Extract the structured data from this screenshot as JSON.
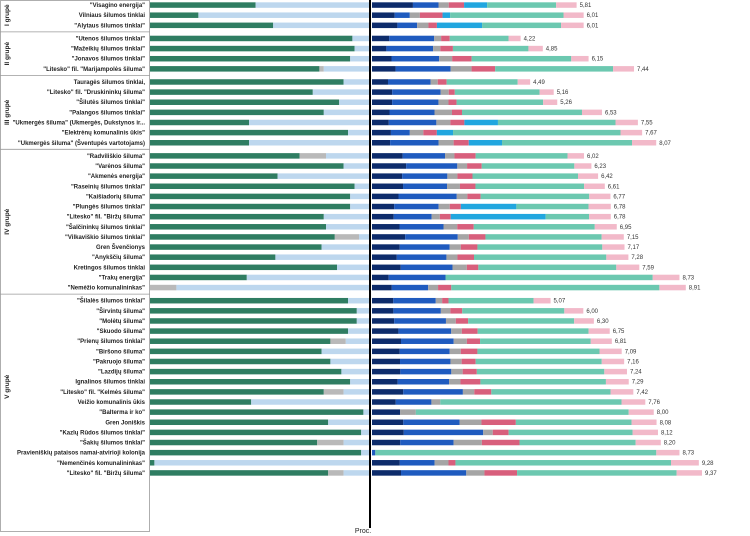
{
  "chart_data": {
    "type": "bar",
    "xlabel": "Proc.",
    "colors": {
      "left": [
        "#2f7d62",
        "#b9b9b9",
        "#bdd7ee"
      ],
      "right": [
        "#0d2c6b",
        "#1f5bbf",
        "#a5a5a5",
        "#d85f7c",
        "#21a6df",
        "#6cc8b0",
        "#f2b9c9"
      ]
    },
    "groups": [
      {
        "name": "I grupė",
        "rows": [
          {
            "label": "\"Visagino energija\"",
            "value": "5,81",
            "left": [
              0.48,
              0.0,
              0.52
            ],
            "right": [
              0,
              0.16,
              0.1,
              0.04,
              0.06,
              0.09,
              0.27,
              0.08
            ]
          },
          {
            "label": "Vilniaus šilumos tinklai",
            "value": "6,01",
            "left": [
              0.22,
              0.0,
              0.78
            ],
            "right": [
              0,
              0.09,
              0.06,
              0.04,
              0.09,
              0.03,
              0.45,
              0.08
            ]
          },
          {
            "label": "\"Alytaus šilumos tinklai\"",
            "value": "6,01",
            "left": [
              0.56,
              0.0,
              0.44
            ],
            "right": [
              0,
              0.09,
              0.07,
              0.04,
              0.03,
              0.16,
              0.28,
              0.08
            ]
          }
        ]
      },
      {
        "name": "II grupė",
        "rows": [
          {
            "label": "\"Utenos šilumos tinklai\"",
            "value": "4,22",
            "left": [
              0.92,
              0.0,
              0.08
            ],
            "right": [
              0,
              0.1,
              0.26,
              0.04,
              0.05,
              0.0,
              0.34,
              0.07
            ]
          },
          {
            "label": "\"Mažeikių šilumos tinklai\"",
            "value": "4,85",
            "left": [
              0.93,
              0.0,
              0.07
            ],
            "right": [
              0,
              0.08,
              0.26,
              0.04,
              0.07,
              0.0,
              0.42,
              0.08
            ]
          },
          {
            "label": "\"Jonavos šilumos tinklai\"",
            "value": "6,15",
            "left": [
              0.91,
              0.0,
              0.09
            ],
            "right": [
              0,
              0.09,
              0.22,
              0.06,
              0.09,
              0.0,
              0.46,
              0.08
            ]
          },
          {
            "label": "\"Litesko\" fil. \"Marijampolės šiluma\"",
            "value": "7,44",
            "left": [
              0.77,
              0.02,
              0.21
            ],
            "right": [
              0,
              0.09,
              0.21,
              0.08,
              0.09,
              0.0,
              0.45,
              0.08
            ]
          }
        ]
      },
      {
        "name": "III grupė",
        "rows": [
          {
            "label": "Tauragės šilumos tinklai,",
            "value": "4,49",
            "left": [
              0.88,
              0.0,
              0.12
            ],
            "right": [
              0,
              0.09,
              0.24,
              0.04,
              0.05,
              0.0,
              0.4,
              0.07
            ]
          },
          {
            "label": "\"Litesko\" fil. \"Druskininkų šiluma\"",
            "value": "5,16",
            "left": [
              0.74,
              0.0,
              0.26
            ],
            "right": [
              0,
              0.1,
              0.24,
              0.04,
              0.03,
              0.0,
              0.42,
              0.07
            ]
          },
          {
            "label": "\"Šilutės šilumos tinklai\"",
            "value": "5,26",
            "left": [
              0.86,
              0.0,
              0.14
            ],
            "right": [
              0,
              0.1,
              0.23,
              0.05,
              0.04,
              0.0,
              0.43,
              0.07
            ]
          },
          {
            "label": "\"Palangos šilumos tinklai\"",
            "value": "6,53",
            "left": [
              0.79,
              0.0,
              0.21
            ],
            "right": [
              0,
              0.07,
              0.18,
              0.07,
              0.04,
              0.0,
              0.48,
              0.08
            ]
          },
          {
            "label": "\"Ukmergės šiluma\" (Ukmergės, Dukstynos ir...",
            "value": "7,55",
            "left": [
              0.45,
              0.0,
              0.55
            ],
            "right": [
              0,
              0.06,
              0.17,
              0.05,
              0.05,
              0.12,
              0.42,
              0.08
            ]
          },
          {
            "label": "\"Elektrėnų komunalinis ūkis\"",
            "value": "7,67",
            "left": [
              0.9,
              0.0,
              0.1
            ],
            "right": [
              0,
              0.07,
              0.07,
              0.05,
              0.05,
              0.06,
              0.62,
              0.08
            ]
          },
          {
            "label": "\"Ukmergės šiluma\" (Šventupės vartotojams)",
            "value": "8,07",
            "left": [
              0.45,
              0.0,
              0.55
            ],
            "right": [
              0,
              0.06,
              0.16,
              0.05,
              0.05,
              0.11,
              0.43,
              0.08
            ]
          }
        ]
      },
      {
        "name": "IV grupė",
        "rows": [
          {
            "label": "\"Radviliškio šiluma\"",
            "value": "6,02",
            "left": [
              0.68,
              0.12,
              0.2
            ],
            "right": [
              0,
              0.13,
              0.18,
              0.04,
              0.09,
              0.0,
              0.39,
              0.07
            ]
          },
          {
            "label": "\"Varėnos šiluma\"",
            "value": "6,23",
            "left": [
              0.88,
              0.0,
              0.12
            ],
            "right": [
              0,
              0.14,
              0.21,
              0.04,
              0.06,
              0.0,
              0.38,
              0.07
            ]
          },
          {
            "label": "\"Akmenės energija\"",
            "value": "6,42",
            "left": [
              0.58,
              0.0,
              0.42
            ],
            "right": [
              0,
              0.12,
              0.18,
              0.04,
              0.06,
              0.0,
              0.42,
              0.08
            ]
          },
          {
            "label": "\"Raseinių šilumos tinklai\"",
            "value": "6,61",
            "left": [
              0.93,
              0.0,
              0.07
            ],
            "right": [
              0,
              0.12,
              0.17,
              0.05,
              0.06,
              0.0,
              0.42,
              0.08
            ]
          },
          {
            "label": "\"Kaišiadorių šiluma\"",
            "value": "6,77",
            "left": [
              0.91,
              0.0,
              0.09
            ],
            "right": [
              0,
              0.1,
              0.22,
              0.04,
              0.05,
              0.0,
              0.41,
              0.08
            ]
          },
          {
            "label": "\"Plungės šilumos tinklai\"",
            "value": "6,78",
            "left": [
              0.91,
              0.0,
              0.09
            ],
            "right": [
              0,
              0.08,
              0.16,
              0.04,
              0.04,
              0.2,
              0.26,
              0.08
            ]
          },
          {
            "label": "\"Litesko\" fil. \"Biržų šiluma\"",
            "value": "6,78",
            "left": [
              0.79,
              0.0,
              0.21
            ],
            "right": [
              0,
              0.08,
              0.14,
              0.03,
              0.04,
              0.35,
              0.16,
              0.08
            ]
          },
          {
            "label": "\"Šalčininkų šilumos tinklai\"",
            "value": "6,95",
            "left": [
              0.8,
              0.0,
              0.2
            ],
            "right": [
              0,
              0.1,
              0.16,
              0.05,
              0.06,
              0.0,
              0.44,
              0.08
            ]
          },
          {
            "label": "\"Vilkaviškio šilumos tinklai\"",
            "value": "7,15",
            "left": [
              0.84,
              0.11,
              0.05
            ],
            "right": [
              0,
              0.12,
              0.19,
              0.04,
              0.06,
              0.0,
              0.42,
              0.08
            ]
          },
          {
            "label": "Gren Švenčionys",
            "value": "7,17",
            "left": [
              0.78,
              0.0,
              0.22
            ],
            "right": [
              0,
              0.1,
              0.18,
              0.04,
              0.06,
              0.0,
              0.45,
              0.08
            ]
          },
          {
            "label": "\"Anykščių šiluma\"",
            "value": "7,28",
            "left": [
              0.57,
              0.0,
              0.43
            ],
            "right": [
              0,
              0.09,
              0.18,
              0.04,
              0.06,
              0.0,
              0.48,
              0.08
            ]
          },
          {
            "label": "Kretingos šilumos tinklai",
            "value": "7,59",
            "left": [
              0.85,
              0.0,
              0.15
            ],
            "right": [
              0,
              0.1,
              0.18,
              0.05,
              0.04,
              0.0,
              0.48,
              0.08
            ]
          },
          {
            "label": "\"Trakų energija\"",
            "value": "8,73",
            "left": [
              0.44,
              0.0,
              0.56
            ],
            "right": [
              0,
              0.05,
              0.17,
              0.0,
              0.0,
              0.0,
              0.62,
              0.08
            ]
          },
          {
            "label": "\"Nemėžio komunalininkas\"",
            "value": "8,91",
            "left": [
              0.0,
              0.12,
              0.88
            ],
            "right": [
              0,
              0.06,
              0.11,
              0.03,
              0.04,
              0.0,
              0.63,
              0.08
            ]
          }
        ]
      },
      {
        "name": "V grupė",
        "rows": [
          {
            "label": "\"Šilalės šilumos tinklai\"",
            "value": "5,07",
            "left": [
              0.9,
              0.0,
              0.1
            ],
            "right": [
              0,
              0.1,
              0.2,
              0.03,
              0.03,
              0.0,
              0.4,
              0.08
            ]
          },
          {
            "label": "\"Širvintų šiluma\"",
            "value": "6,00",
            "left": [
              0.94,
              0.0,
              0.06
            ],
            "right": [
              0,
              0.09,
              0.2,
              0.04,
              0.05,
              0.0,
              0.43,
              0.08
            ]
          },
          {
            "label": "\"Molėtų šiluma\"",
            "value": "6,30",
            "left": [
              0.94,
              0.0,
              0.06
            ],
            "right": [
              0,
              0.09,
              0.21,
              0.04,
              0.05,
              0.0,
              0.43,
              0.08
            ]
          },
          {
            "label": "\"Skuodo šiluma\"",
            "value": "6,75",
            "left": [
              0.9,
              0.0,
              0.1
            ],
            "right": [
              0,
              0.1,
              0.2,
              0.04,
              0.06,
              0.0,
              0.42,
              0.08
            ]
          },
          {
            "label": "\"Prienų šilumos tinklai\"",
            "value": "6,81",
            "left": [
              0.82,
              0.07,
              0.11
            ],
            "right": [
              0,
              0.11,
              0.2,
              0.05,
              0.05,
              0.0,
              0.42,
              0.08
            ]
          },
          {
            "label": "\"Biršono šiluma\"",
            "value": "7,09",
            "left": [
              0.78,
              0.0,
              0.22
            ],
            "right": [
              0,
              0.1,
              0.18,
              0.04,
              0.06,
              0.0,
              0.44,
              0.08
            ]
          },
          {
            "label": "\"Pakruojo šiluma\"",
            "value": "7,16",
            "left": [
              0.82,
              0.0,
              0.18
            ],
            "right": [
              0,
              0.1,
              0.18,
              0.04,
              0.05,
              0.0,
              0.45,
              0.08
            ]
          },
          {
            "label": "\"Lazdijų šiluma\"",
            "value": "7,24",
            "left": [
              0.87,
              0.0,
              0.13
            ],
            "right": [
              0,
              0.1,
              0.18,
              0.04,
              0.05,
              0.0,
              0.45,
              0.08
            ]
          },
          {
            "label": "Ignalinos šilumos tinklai",
            "value": "7,29",
            "left": [
              0.91,
              0.0,
              0.09
            ],
            "right": [
              0,
              0.09,
              0.18,
              0.04,
              0.07,
              0.0,
              0.44,
              0.08
            ]
          },
          {
            "label": "\"Litesko\" fil. \"Kelmės šiluma\"",
            "value": "7,42",
            "left": [
              0.79,
              0.09,
              0.12
            ],
            "right": [
              0,
              0.11,
              0.21,
              0.04,
              0.06,
              0.0,
              0.42,
              0.08
            ]
          },
          {
            "label": "Veižio komunalinis ūkis",
            "value": "7,76",
            "left": [
              0.46,
              0.0,
              0.54
            ],
            "right": [
              0,
              0.08,
              0.12,
              0.03,
              0.0,
              0.0,
              0.61,
              0.08
            ]
          },
          {
            "label": "\"Balterma ir ko\"",
            "value": "8,00",
            "left": [
              0.97,
              0.0,
              0.03
            ],
            "right": [
              0,
              0.09,
              0.0,
              0.05,
              0.0,
              0.0,
              0.68,
              0.08
            ]
          },
          {
            "label": "Gren Joniškis",
            "value": "8,08",
            "left": [
              0.81,
              0.0,
              0.19
            ],
            "right": [
              0,
              0.1,
              0.18,
              0.07,
              0.11,
              0.0,
              0.37,
              0.08
            ]
          },
          {
            "label": "\"Kazlų Rūdos šilumos tinklai\"",
            "value": "8,12",
            "left": [
              0.96,
              0.0,
              0.04
            ],
            "right": [
              0,
              0.1,
              0.25,
              0.03,
              0.05,
              0.0,
              0.39,
              0.08
            ]
          },
          {
            "label": "\"Šakių šilumos tinklai\"",
            "value": "8,20",
            "left": [
              0.76,
              0.12,
              0.12
            ],
            "right": [
              0,
              0.09,
              0.17,
              0.09,
              0.12,
              0.0,
              0.37,
              0.08
            ]
          },
          {
            "label": "Pravieniškių pataisos namai-atvirioji kolonija",
            "value": "8,73",
            "left": [
              0.96,
              0.0,
              0.04
            ],
            "right": [
              0,
              0.0,
              0.01,
              0.0,
              0.0,
              0.0,
              0.85,
              0.07
            ]
          },
          {
            "label": "\"Nemenčinės komunalininkas\"",
            "value": "9,28",
            "left": [
              0.02,
              0.0,
              0.98
            ],
            "right": [
              0,
              0.08,
              0.1,
              0.04,
              0.02,
              0.0,
              0.62,
              0.08
            ]
          },
          {
            "label": "\"Litesko\" fil. \"Biržų šiluma\"",
            "value": "9,37",
            "left": [
              0.81,
              0.07,
              0.12
            ],
            "right": [
              0,
              0.08,
              0.18,
              0.05,
              0.09,
              0.0,
              0.44,
              0.07
            ]
          }
        ]
      }
    ]
  }
}
